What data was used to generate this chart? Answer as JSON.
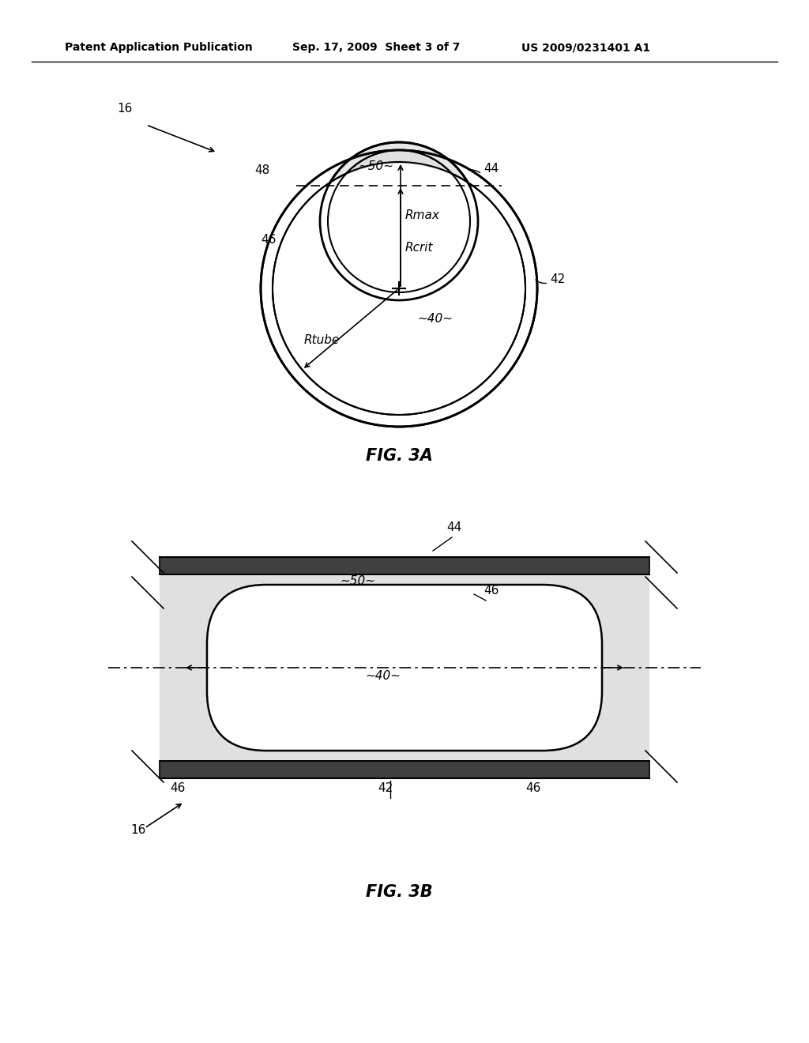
{
  "bg_color": "#ffffff",
  "line_color": "#000000",
  "hatch_color": "#888888",
  "fig3a_label": "FIG. 3A",
  "fig3b_label": "FIG. 3B",
  "header_left": "Patent Application Publication",
  "header_mid": "Sep. 17, 2009  Sheet 3 of 7",
  "header_right": "US 2009/0231401 A1"
}
